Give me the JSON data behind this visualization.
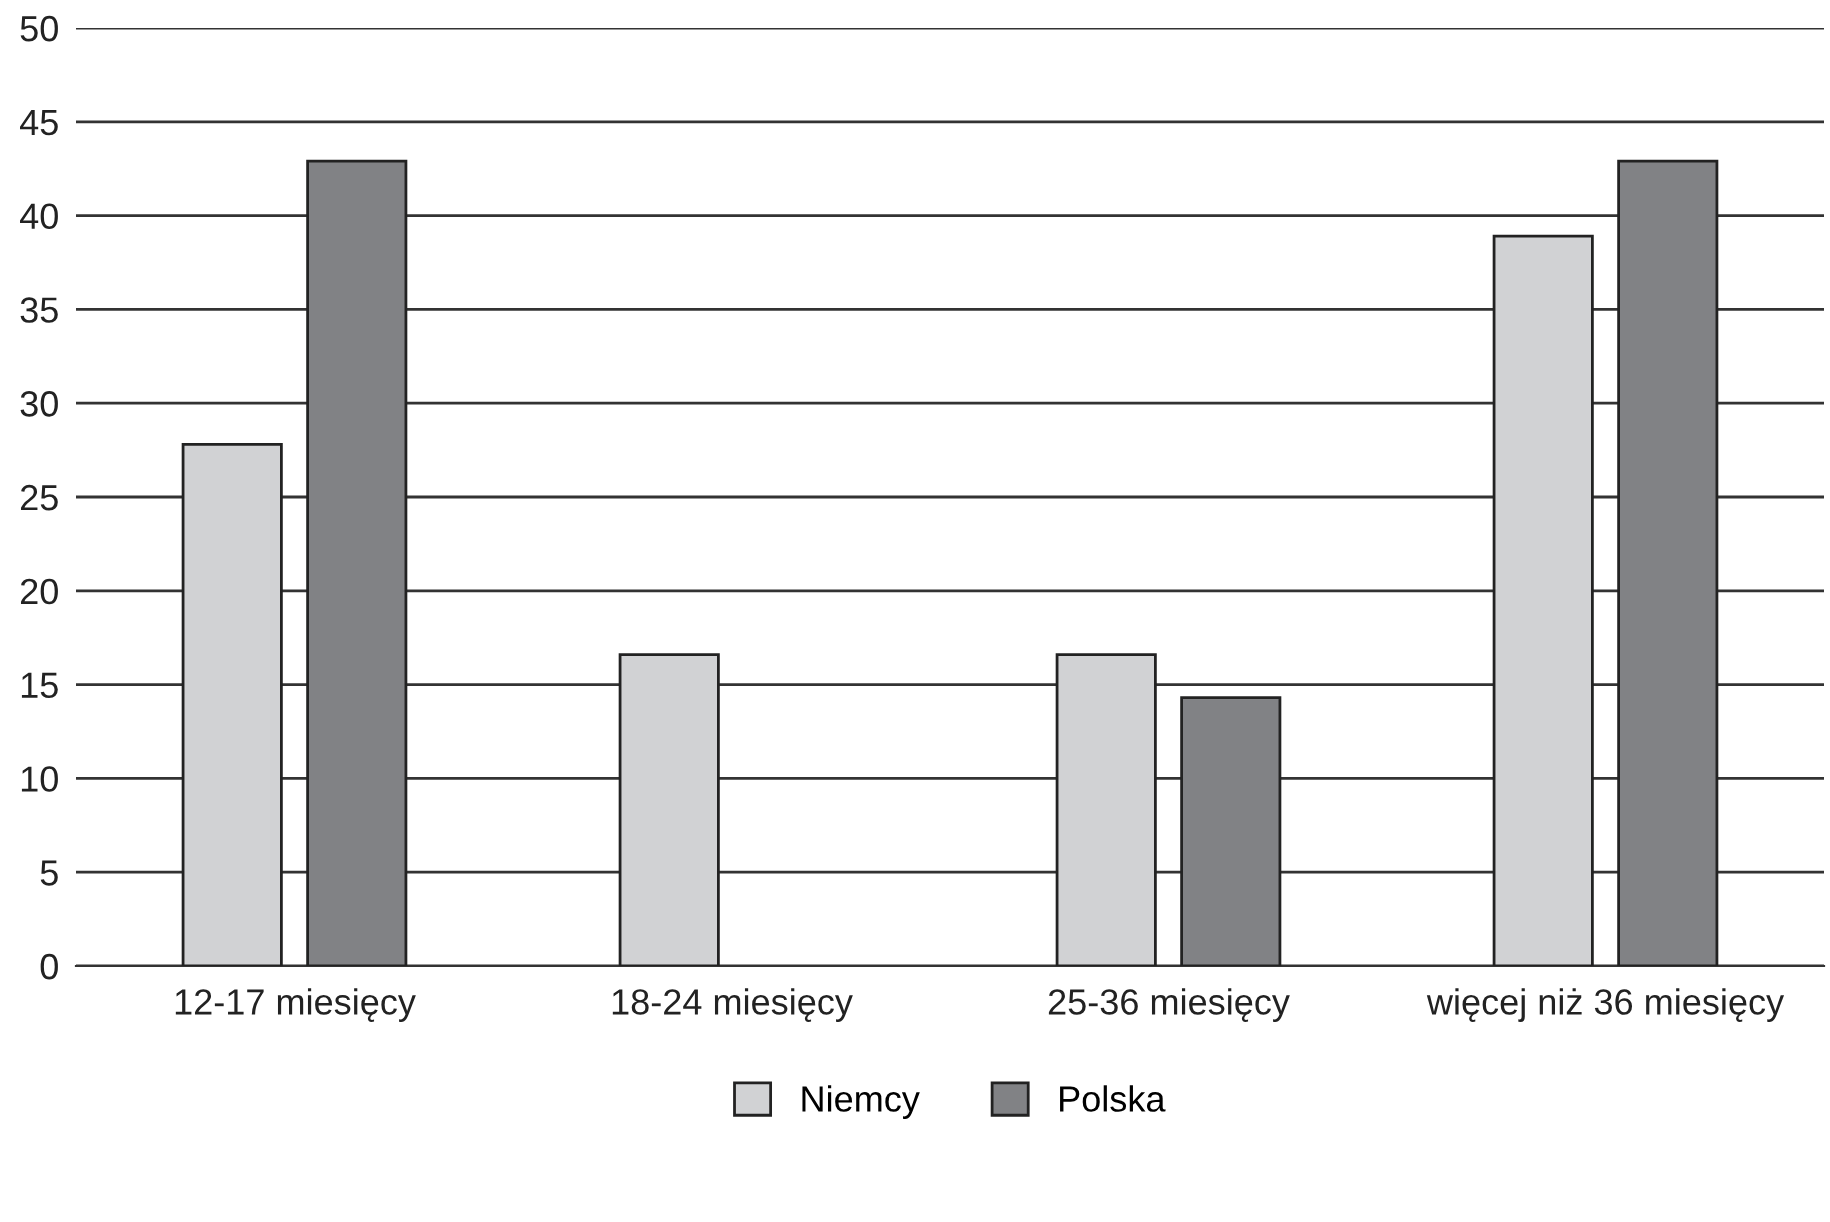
{
  "chart_data": {
    "type": "bar",
    "categories": [
      "12-17 miesięcy",
      "18-24 miesięcy",
      "25-36 miesięcy",
      "więcej niż 36 miesięcy"
    ],
    "series": [
      {
        "name": "Niemcy",
        "color": "#d1d2d4",
        "values": [
          27.8,
          16.6,
          16.6,
          38.9
        ]
      },
      {
        "name": "Polska",
        "color": "#818285",
        "values": [
          42.9,
          null,
          14.3,
          42.9
        ]
      }
    ],
    "ylim": [
      0,
      50
    ],
    "yticks": [
      0,
      5,
      10,
      15,
      20,
      25,
      30,
      35,
      40,
      45,
      50
    ],
    "grid": "y",
    "legend": "bottom"
  }
}
